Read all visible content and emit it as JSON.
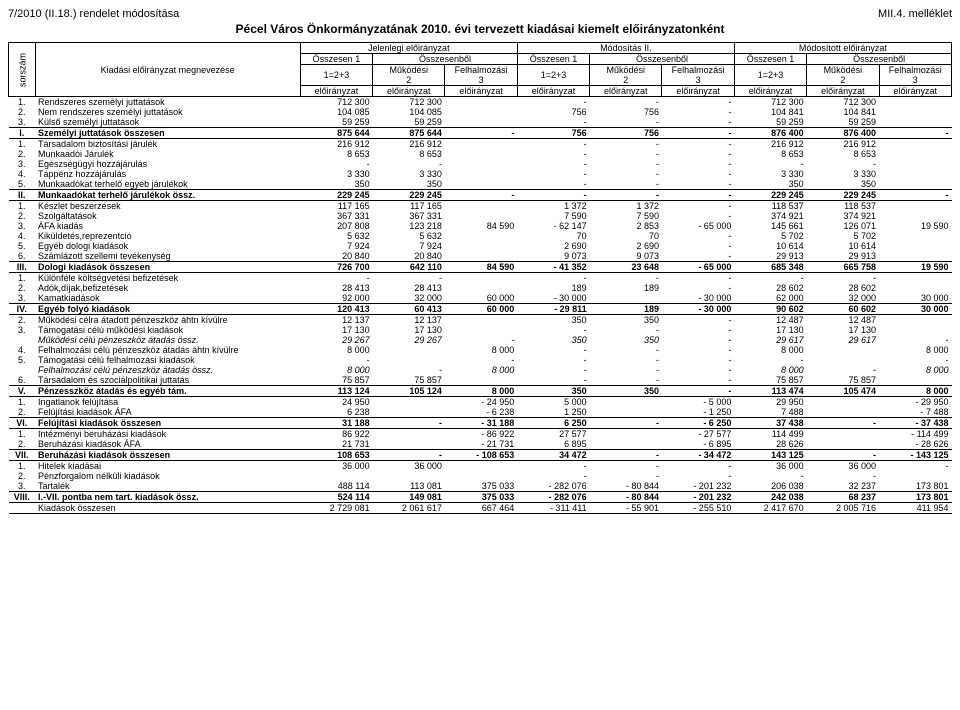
{
  "header": {
    "left": "7/2010 (II.18.) rendelet módosítása",
    "right": "MII.4. melléklet",
    "title": "Pécel Város Önkormányzatának 2010. évi tervezett kiadásai kiemelt előirányzatonként",
    "rot": "sorszám",
    "name_col": "Kiadási előirányzat megnevezése",
    "group1": "Jelenlegi előirányzat",
    "group2": "Módosítás II.",
    "group3": "Módosított előirányzat",
    "sub_ossz1": "Összesen 1",
    "sub_osszb": "Összesenből",
    "sub_mukodesi": "Működési",
    "sub_felh": "Felhalmozási",
    "sub_12p3": "1=2+3",
    "sub_2": "2",
    "sub_3": "3",
    "eloir": "előirányzat"
  },
  "rows": [
    {
      "n": "1.",
      "l": "Rendszeres személyi juttatások",
      "v": [
        "712 300",
        "712 300",
        "",
        "-",
        "-",
        "-",
        "712 300",
        "712 300",
        ""
      ],
      "cls": "sep-top"
    },
    {
      "n": "2.",
      "l": "Nem rendszeres személyi juttatások",
      "v": [
        "104 085",
        "104 085",
        "",
        "756",
        "756",
        "-",
        "104 841",
        "104 841",
        ""
      ]
    },
    {
      "n": "3.",
      "l": "Külső személyi juttatások",
      "v": [
        "59 259",
        "59 259",
        "",
        "-",
        "-",
        "-",
        "59 259",
        "59 259",
        ""
      ]
    },
    {
      "n": "I.",
      "l": "Személyi juttatások összesen",
      "v": [
        "875 644",
        "875 644",
        "-",
        "756",
        "756",
        "-",
        "876 400",
        "876 400",
        "-"
      ],
      "cls": "bold sep-top sep-bot"
    },
    {
      "n": "1.",
      "l": "Társadalom biztosítási járulék",
      "v": [
        "216 912",
        "216 912",
        "",
        "-",
        "-",
        "-",
        "216 912",
        "216 912",
        ""
      ]
    },
    {
      "n": "2.",
      "l": "Munkaadói Járulék",
      "v": [
        "8 653",
        "8 653",
        "",
        "-",
        "-",
        "-",
        "8 653",
        "8 653",
        ""
      ]
    },
    {
      "n": "3.",
      "l": "Egészségügyi hozzájárulás",
      "v": [
        "-",
        "-",
        "",
        "-",
        "-",
        "-",
        "-",
        "-",
        ""
      ]
    },
    {
      "n": "4.",
      "l": "Táppénz hozzájárulás",
      "v": [
        "3 330",
        "3 330",
        "",
        "-",
        "-",
        "-",
        "3 330",
        "3 330",
        ""
      ]
    },
    {
      "n": "5.",
      "l": "Munkaadókat terhelő egyéb járulékok",
      "v": [
        "350",
        "350",
        "",
        "-",
        "-",
        "-",
        "350",
        "350",
        ""
      ]
    },
    {
      "n": "II.",
      "l": "Munkaadókat terhelő járulékok össz.",
      "v": [
        "229 245",
        "229 245",
        "-",
        "-",
        "-",
        "-",
        "229 245",
        "229 245",
        "-"
      ],
      "cls": "bold sep-top sep-bot"
    },
    {
      "n": "1.",
      "l": "Készlet beszerzések",
      "v": [
        "117 165",
        "117 165",
        "",
        "1 372",
        "1 372",
        "-",
        "118 537",
        "118 537",
        ""
      ]
    },
    {
      "n": "2.",
      "l": "Szolgáltatások",
      "v": [
        "367 331",
        "367 331",
        "",
        "7 590",
        "7 590",
        "-",
        "374 921",
        "374 921",
        ""
      ]
    },
    {
      "n": "3.",
      "l": "ÁFA kiadás",
      "v": [
        "207 808",
        "123 218",
        "84 590",
        "- 62 147",
        "2 853",
        "- 65 000",
        "145 661",
        "126 071",
        "19 590"
      ]
    },
    {
      "n": "4.",
      "l": "Kiküldetés,reprezentció",
      "v": [
        "5 632",
        "5 632",
        "",
        "70",
        "70",
        "-",
        "5 702",
        "5 702",
        ""
      ]
    },
    {
      "n": "5.",
      "l": "Egyéb dologi kiadások",
      "v": [
        "7 924",
        "7 924",
        "",
        "2 690",
        "2 690",
        "-",
        "10 614",
        "10 614",
        ""
      ]
    },
    {
      "n": "6.",
      "l": "Számlázott szellemi tevékenység",
      "v": [
        "20 840",
        "20 840",
        "",
        "9 073",
        "9 073",
        "-",
        "29 913",
        "29 913",
        ""
      ]
    },
    {
      "n": "III.",
      "l": "Dologi kiadások összesen",
      "v": [
        "726 700",
        "642 110",
        "84 590",
        "- 41 352",
        "23 648",
        "- 65 000",
        "685 348",
        "665 758",
        "19 590"
      ],
      "cls": "bold sep-top sep-bot"
    },
    {
      "n": "1.",
      "l": "Különféle költségvetési befizetések",
      "v": [
        "-",
        "-",
        "",
        "-",
        "-",
        "-",
        "-",
        "-",
        ""
      ]
    },
    {
      "n": "2.",
      "l": "Adók,díjak,befizetések",
      "v": [
        "28 413",
        "28 413",
        "",
        "189",
        "189",
        "-",
        "28 602",
        "28 602",
        ""
      ]
    },
    {
      "n": "3.",
      "l": "Kamatkiadások",
      "v": [
        "92 000",
        "32 000",
        "60 000",
        "- 30 000",
        "",
        "- 30 000",
        "62 000",
        "32 000",
        "30 000"
      ]
    },
    {
      "n": "IV.",
      "l": "Egyéb folyó kiadások",
      "v": [
        "120 413",
        "60 413",
        "60 000",
        "- 29 811",
        "189",
        "- 30 000",
        "90 602",
        "60 602",
        "30 000"
      ],
      "cls": "bold sep-top sep-bot"
    },
    {
      "n": "2.",
      "l": "Működési célra átadott pénzeszköz áhtn kívülre",
      "v": [
        "12 137",
        "12 137",
        "",
        "350",
        "350",
        "-",
        "12 487",
        "12 487",
        ""
      ]
    },
    {
      "n": "3.",
      "l": "Támogatási célú működési kiadások",
      "v": [
        "17 130",
        "17 130",
        "",
        "-",
        "-",
        "-",
        "17 130",
        "17 130",
        ""
      ]
    },
    {
      "n": "",
      "l": "Működési célú pénzeszköz átadás össz.",
      "v": [
        "29 267",
        "29 267",
        "-",
        "350",
        "350",
        "-",
        "29 617",
        "29 617",
        "-"
      ],
      "cls": "italic"
    },
    {
      "n": "4.",
      "l": "Felhalmozási célú pénzeszköz átadás áhtn kívülre",
      "v": [
        "8 000",
        "",
        "8 000",
        "-",
        "-",
        "-",
        "8 000",
        "",
        "8 000"
      ]
    },
    {
      "n": "5.",
      "l": "Támogatási célú felhalmozási kiadások",
      "v": [
        "-",
        "",
        "-",
        "-",
        "-",
        "-",
        "-",
        "",
        "-"
      ]
    },
    {
      "n": "",
      "l": "Felhalmozási célú pénzeszköz átadás össz.",
      "v": [
        "8 000",
        "-",
        "8 000",
        "-",
        "-",
        "-",
        "8 000",
        "-",
        "8 000"
      ],
      "cls": "italic"
    },
    {
      "n": "6.",
      "l": "Társadalom és szociálpolitikai juttatás",
      "v": [
        "75 857",
        "75 857",
        "",
        "-",
        "-",
        "-",
        "75 857",
        "75 857",
        ""
      ]
    },
    {
      "n": "V.",
      "l": "Pénzesszköz átadás és egyéb tám.",
      "v": [
        "113 124",
        "105 124",
        "8 000",
        "350",
        "350",
        "-",
        "113 474",
        "105 474",
        "8 000"
      ],
      "cls": "bold sep-top sep-bot"
    },
    {
      "n": "1.",
      "l": "Ingatlanok felújítása",
      "v": [
        "24 950",
        "",
        "- 24 950",
        "5 000",
        "",
        "- 5 000",
        "29 950",
        "",
        "- 29 950"
      ]
    },
    {
      "n": "2.",
      "l": "Felújítási kiadások ÁFA",
      "v": [
        "6 238",
        "",
        "- 6 238",
        "1 250",
        "",
        "- 1 250",
        "7 488",
        "",
        "- 7 488"
      ]
    },
    {
      "n": "VI.",
      "l": "Felújítási kiadások összesen",
      "v": [
        "31 188",
        "-",
        "- 31 188",
        "6 250",
        "-",
        "- 6 250",
        "37 438",
        "-",
        "- 37 438"
      ],
      "cls": "bold sep-top sep-bot"
    },
    {
      "n": "1.",
      "l": "Intézményi beruházási kiadások",
      "v": [
        "86 922",
        "",
        "- 86 922",
        "27 577",
        "",
        "- 27 577",
        "114 499",
        "",
        "- 114 499"
      ]
    },
    {
      "n": "2.",
      "l": "Beruházási kiadások ÁFA",
      "v": [
        "21 731",
        "",
        "- 21 731",
        "6 895",
        "",
        "- 6 895",
        "28 626",
        "",
        "- 28 626"
      ]
    },
    {
      "n": "VII.",
      "l": "Beruházási kiadások összesen",
      "v": [
        "108 653",
        "-",
        "- 108 653",
        "34 472",
        "-",
        "- 34 472",
        "143 125",
        "-",
        "- 143 125"
      ],
      "cls": "bold sep-top sep-bot"
    },
    {
      "n": "1.",
      "l": "Hitelek kiadásai",
      "v": [
        "36 000",
        "36 000",
        "",
        "-",
        "-",
        "-",
        "36 000",
        "36 000",
        "-"
      ]
    },
    {
      "n": "2.",
      "l": "Pénzforgalom nélküli kiadások",
      "v": [
        "",
        "",
        "",
        "-",
        "-",
        "-",
        "-",
        "-",
        ""
      ]
    },
    {
      "n": "3.",
      "l": "Tartalék",
      "v": [
        "488 114",
        "113 081",
        "375 033",
        "- 282 076",
        "- 80 844",
        "- 201 232",
        "206 038",
        "32 237",
        "173 801"
      ]
    },
    {
      "n": "VIII.",
      "l": "I.-VII. pontba nem tart. kiadások össz.",
      "v": [
        "524 114",
        "149 081",
        "375 033",
        "- 282 076",
        "- 80 844",
        "- 201 232",
        "242 038",
        "68 237",
        "173 801"
      ],
      "cls": "bold sep-top sep-bot"
    },
    {
      "n": "",
      "l": "Kiadások összesen",
      "v": [
        "2 729 081",
        "2 061 617",
        "667 464",
        "- 311 411",
        "- 55 901",
        "- 255 510",
        "2 417 670",
        "2 005 716",
        "411 954"
      ],
      "cls": "sep-bot"
    }
  ]
}
